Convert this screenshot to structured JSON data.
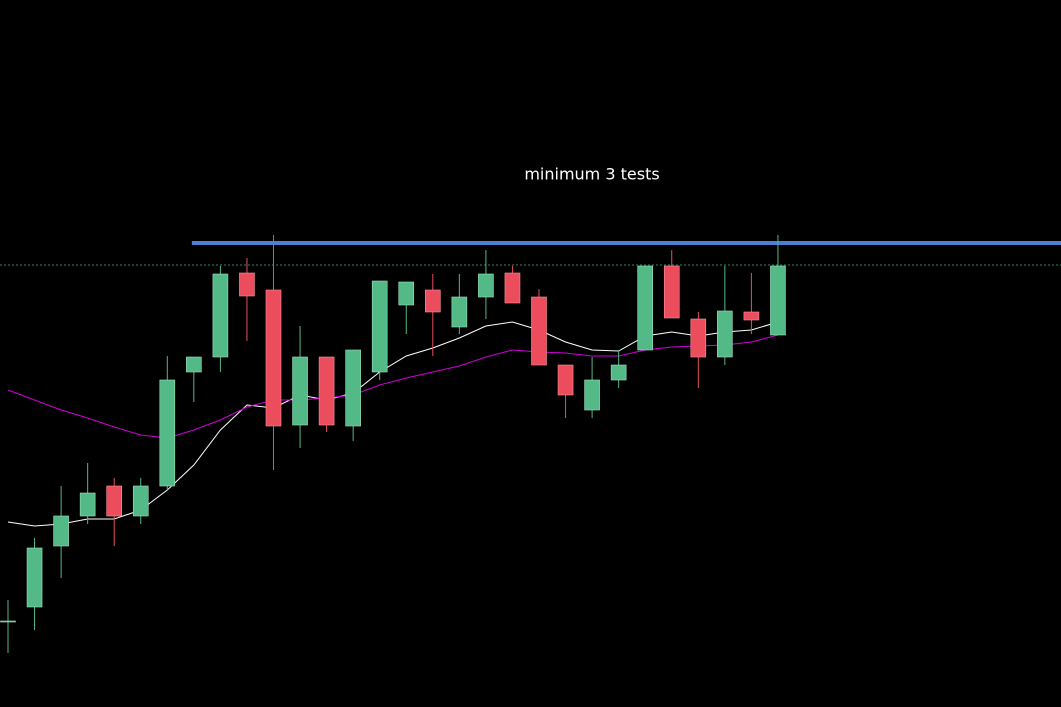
{
  "chart_data": {
    "type": "candlestick",
    "annotation": "minimum 3 tests",
    "categories": [
      null,
      null,
      null,
      null,
      null,
      null,
      null,
      null,
      null,
      null,
      null,
      null,
      null,
      null,
      null,
      null,
      null,
      null,
      null,
      null,
      null,
      null,
      null,
      null,
      null,
      null,
      null,
      null,
      null,
      null
    ],
    "open": [
      85,
      100,
      161,
      191,
      221,
      191,
      221,
      335,
      350,
      434,
      417,
      282,
      350,
      281,
      335,
      402,
      417,
      380,
      410,
      434,
      410,
      342,
      297,
      327,
      357,
      441,
      388,
      350,
      395,
      372
    ],
    "high": [
      107,
      169,
      221,
      244,
      229,
      229,
      351,
      350,
      441,
      449,
      472,
      381,
      350,
      357,
      426,
      425,
      433,
      433,
      457,
      441,
      418,
      342,
      350,
      357,
      441,
      457,
      395,
      441,
      434,
      472
    ],
    "low": [
      54,
      77,
      129,
      183,
      161,
      183,
      217,
      305,
      335,
      366,
      237,
      259,
      275,
      266,
      327,
      373,
      351,
      373,
      388,
      404,
      342,
      289,
      289,
      319,
      357,
      389,
      319,
      342,
      373,
      372
    ],
    "close": [
      86,
      159,
      191,
      214,
      191,
      221,
      327,
      350,
      433,
      411,
      281,
      350,
      282,
      357,
      426,
      425,
      395,
      410,
      433,
      404,
      342,
      312,
      327,
      342,
      441,
      389,
      350,
      396,
      387,
      441
    ],
    "up_color": "#53b987",
    "down_color": "#eb4d5c",
    "lines": [
      {
        "color": "#ffffff",
        "values": [
          185,
          181,
          183,
          188,
          188,
          197,
          217,
          242,
          277,
          302,
          299,
          312,
          307,
          314,
          335,
          351,
          359,
          369,
          381,
          385,
          377,
          365,
          357,
          356,
          371,
          375,
          371,
          375,
          377,
          385
        ]
      },
      {
        "color": "#d000d8",
        "values": [
          317,
          307,
          297,
          289,
          280,
          272,
          269,
          277,
          287,
          300,
          307,
          307,
          309,
          312,
          322,
          329,
          335,
          341,
          350,
          357,
          355,
          354,
          351,
          351,
          357,
          360,
          361,
          362,
          365,
          372
        ]
      }
    ],
    "hlines": [
      {
        "value": 464,
        "color": "#4a7fd8",
        "x_start": 7
      },
      {
        "value": 442,
        "color": "#2e8b6a",
        "dashed": true
      }
    ],
    "ylim": [
      0,
      707
    ]
  }
}
